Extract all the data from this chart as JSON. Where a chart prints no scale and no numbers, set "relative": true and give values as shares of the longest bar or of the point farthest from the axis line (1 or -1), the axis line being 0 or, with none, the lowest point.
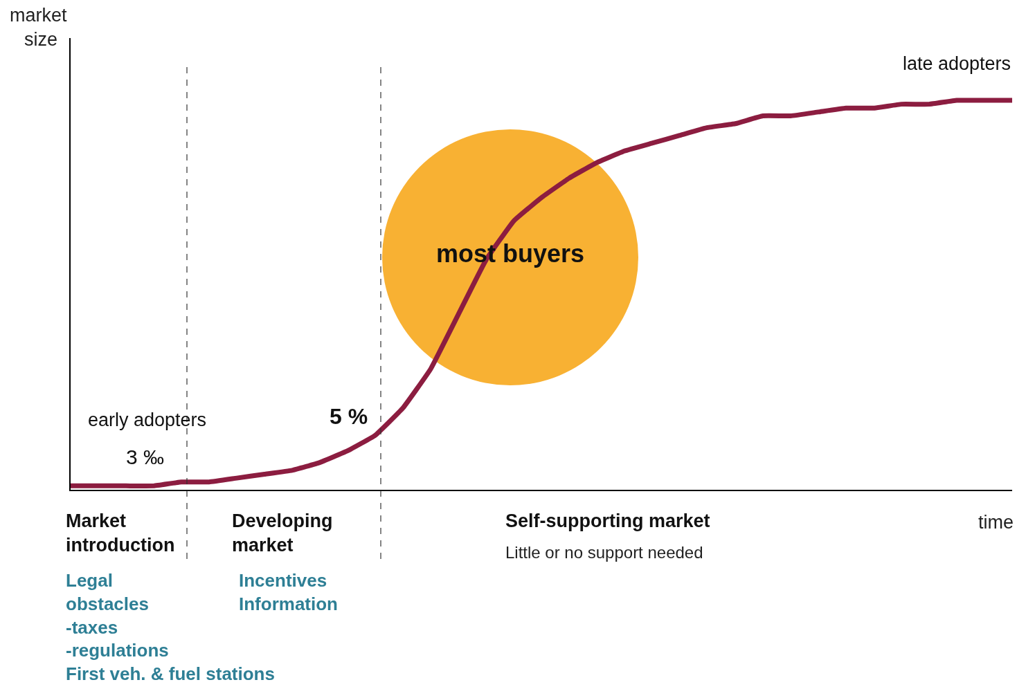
{
  "chart_data": {
    "type": "line",
    "relative": true,
    "xlabel": "time",
    "ylabel": "market size",
    "categories": [
      null,
      null,
      null,
      null,
      null,
      null,
      null,
      null,
      null,
      null,
      null,
      null,
      null,
      null,
      null,
      null,
      null,
      null,
      null,
      null,
      null,
      null,
      null,
      null,
      null,
      null,
      null,
      null,
      null,
      null,
      null,
      null,
      null,
      null,
      null
    ],
    "series": [
      {
        "color": "#8c1d40",
        "values": [
          0.01,
          0.01,
          0.01,
          0.01,
          0.02,
          0.02,
          0.03,
          0.04,
          0.05,
          0.07,
          0.1,
          0.14,
          0.21,
          0.31,
          0.45,
          0.59,
          0.69,
          0.75,
          0.8,
          0.84,
          0.87,
          0.89,
          0.91,
          0.93,
          0.94,
          0.96,
          0.96,
          0.97,
          0.98,
          0.98,
          0.99,
          0.99,
          1.0,
          1.0,
          1.0
        ]
      }
    ],
    "annotations": [
      "late adopters",
      "most buyers",
      "early adopters",
      "3 ‰",
      "5 %",
      "Market\nintroduction",
      "Developing\nmarket",
      "Self-supporting market",
      "Little or no support needed",
      "Legal\nobstacles\n-taxes\n-regulations\nFirst veh. & fuel stations",
      "Incentives\nInformation"
    ],
    "grid": false,
    "marker": "none",
    "line_style": "solid"
  }
}
